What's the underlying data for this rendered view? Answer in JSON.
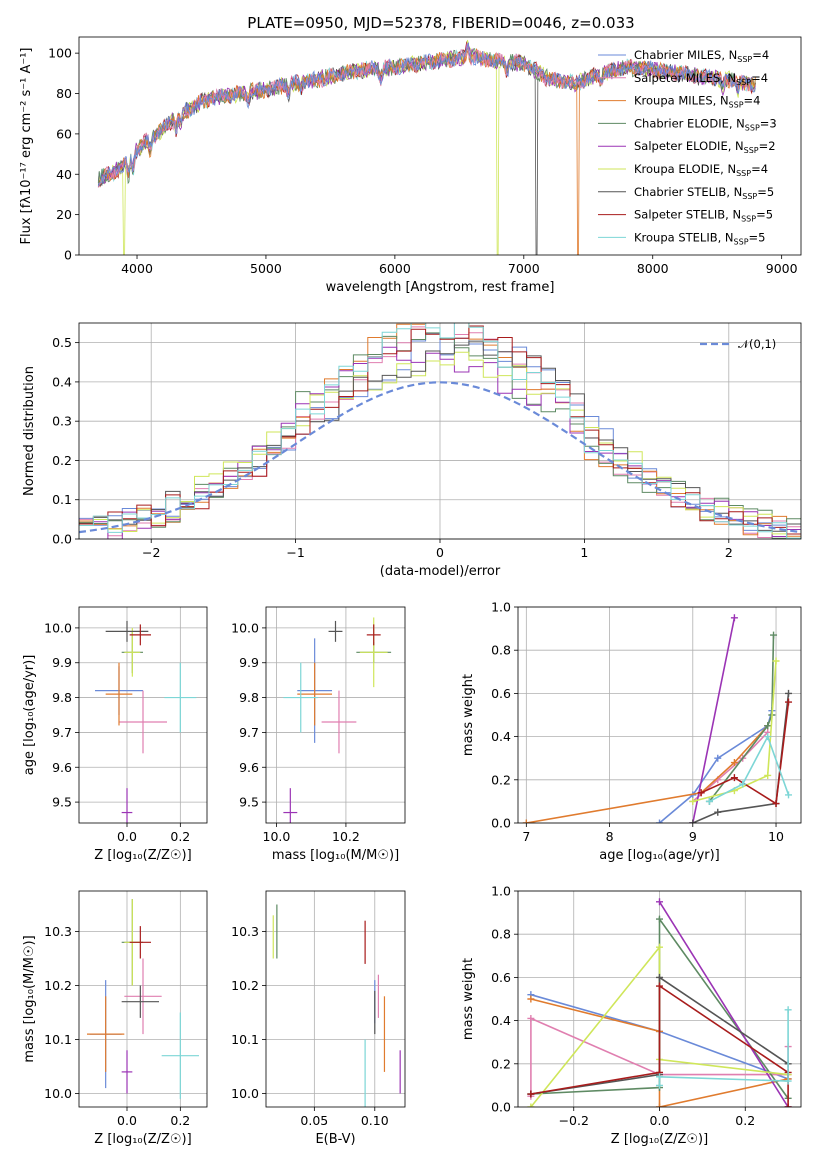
{
  "figure": {
    "title": "PLATE=0950, MJD=52378, FIBERID=0046, z=0.033"
  },
  "series": [
    {
      "name": "Chabrier MILES, N",
      "sub": "SSP",
      "n": "=4",
      "color": "#6a8ad8"
    },
    {
      "name": "Salpeter MILES, N",
      "sub": "SSP",
      "n": "=4",
      "color": "#e07fb0"
    },
    {
      "name": "Kroupa MILES, N",
      "sub": "SSP",
      "n": "=4",
      "color": "#e07b2e"
    },
    {
      "name": "Chabrier ELODIE, N",
      "sub": "SSP",
      "n": "=3",
      "color": "#5e8a63"
    },
    {
      "name": "Salpeter ELODIE, N",
      "sub": "SSP",
      "n": "=2",
      "color": "#9b34b5"
    },
    {
      "name": "Kroupa ELODIE, N",
      "sub": "SSP",
      "n": "=4",
      "color": "#cfe65a"
    },
    {
      "name": "Chabrier STELIB, N",
      "sub": "SSP",
      "n": "=5",
      "color": "#555555"
    },
    {
      "name": "Salpeter STELIB, N",
      "sub": "SSP",
      "n": "=5",
      "color": "#a81c1c"
    },
    {
      "name": "Kroupa STELIB, N",
      "sub": "SSP",
      "n": "=5",
      "color": "#7dd6d6"
    }
  ],
  "chart_data": [
    {
      "id": "spectrum",
      "type": "line",
      "xlabel": "wavelength [Angstrom, rest frame]",
      "ylabel": "Flux [fλ10⁻¹⁷ erg cm⁻² s⁻¹ A⁻¹]",
      "xlim": [
        3550,
        9150
      ],
      "ylim": [
        0,
        108
      ],
      "xticks": [
        4000,
        5000,
        6000,
        7000,
        8000,
        9000
      ],
      "yticks": [
        0,
        20,
        40,
        60,
        80,
        100
      ],
      "grid": false,
      "legend": "top-right",
      "continuum": {
        "x": [
          3700,
          3800,
          3900,
          4000,
          4100,
          4200,
          4300,
          4400,
          4500,
          4600,
          4800,
          5000,
          5200,
          5400,
          5600,
          5800,
          6000,
          6200,
          6400,
          6600,
          6800,
          7000,
          7200,
          7400,
          7600,
          7800,
          8000,
          8200,
          8400,
          8600,
          8800
        ],
        "y": [
          38,
          40,
          45,
          52,
          58,
          62,
          68,
          72,
          76,
          78,
          80,
          82,
          85,
          87,
          90,
          92,
          93,
          95,
          97,
          98,
          96,
          95,
          87,
          85,
          90,
          93,
          92,
          90,
          88,
          87,
          84
        ]
      },
      "dropouts": [
        {
          "series": 5,
          "x": 3900
        },
        {
          "series": 5,
          "x": 6800
        },
        {
          "series": 6,
          "x": 7100
        },
        {
          "series": 2,
          "x": 7420
        }
      ]
    },
    {
      "id": "residuals",
      "type": "step",
      "xlabel": "(data-model)/error",
      "ylabel": "Normed distribution",
      "xlim": [
        -2.5,
        2.5
      ],
      "ylim": [
        0,
        0.55
      ],
      "xticks": [
        -2,
        -1,
        0,
        1,
        2
      ],
      "yticks": [
        0.0,
        0.1,
        0.2,
        0.3,
        0.4,
        0.5
      ],
      "grid": true,
      "legend": "top-right",
      "reference": {
        "name": "𝒩(0,1)",
        "mean": 0,
        "sigma": 1,
        "color": "#6a8ad8"
      },
      "bin_width": 0.1
    },
    {
      "id": "age-vs-Z",
      "type": "errorbar",
      "xlabel": "Z [log₁₀(Z/Z☉)]",
      "ylabel": "age  [log₁₀(age/yr)]",
      "xlim": [
        -0.18,
        0.3
      ],
      "ylim": [
        9.44,
        10.06
      ],
      "xticks": [
        0.0,
        0.2
      ],
      "yticks": [
        9.5,
        9.6,
        9.7,
        9.8,
        9.9,
        10.0
      ],
      "grid": true,
      "points": [
        {
          "series": 0,
          "x": -0.03,
          "y": 9.82,
          "xerr": 0.09,
          "yerr": 0.07
        },
        {
          "series": 1,
          "x": 0.06,
          "y": 9.73,
          "xerr": 0.09,
          "yerr": 0.09
        },
        {
          "series": 2,
          "x": -0.03,
          "y": 9.81,
          "xerr": 0.05,
          "yerr": 0.09
        },
        {
          "series": 3,
          "x": 0.02,
          "y": 9.93,
          "xerr": 0.04,
          "yerr": 0.06
        },
        {
          "series": 4,
          "x": 0.0,
          "y": 9.47,
          "xerr": 0.02,
          "yerr": 0.07
        },
        {
          "series": 5,
          "x": 0.02,
          "y": 9.93,
          "xerr": 0.03,
          "yerr": 0.07
        },
        {
          "series": 6,
          "x": 0.0,
          "y": 9.99,
          "xerr": 0.08,
          "yerr": 0.03
        },
        {
          "series": 7,
          "x": 0.05,
          "y": 9.98,
          "xerr": 0.04,
          "yerr": 0.03
        },
        {
          "series": 8,
          "x": 0.2,
          "y": 9.8,
          "xerr": 0.06,
          "yerr": 0.1
        }
      ]
    },
    {
      "id": "age-vs-mass",
      "type": "errorbar",
      "xlabel": "mass [log₁₀(M/M☉)]",
      "ylabel": "",
      "xlim": [
        9.97,
        10.37
      ],
      "ylim": [
        9.44,
        10.06
      ],
      "xticks": [
        10.0,
        10.2
      ],
      "yticks": [
        9.5,
        9.6,
        9.7,
        9.8,
        9.9,
        10.0
      ],
      "grid": true,
      "points": [
        {
          "series": 0,
          "x": 10.11,
          "y": 9.82,
          "xerr": 0.05,
          "yerr": 0.15
        },
        {
          "series": 1,
          "x": 10.18,
          "y": 9.73,
          "xerr": 0.05,
          "yerr": 0.09
        },
        {
          "series": 2,
          "x": 10.11,
          "y": 9.81,
          "xerr": 0.05,
          "yerr": 0.09
        },
        {
          "series": 3,
          "x": 10.28,
          "y": 9.93,
          "xerr": 0.05,
          "yerr": 0.03
        },
        {
          "series": 4,
          "x": 10.04,
          "y": 9.47,
          "xerr": 0.02,
          "yerr": 0.07
        },
        {
          "series": 5,
          "x": 10.28,
          "y": 9.93,
          "xerr": 0.04,
          "yerr": 0.1
        },
        {
          "series": 6,
          "x": 10.17,
          "y": 9.99,
          "xerr": 0.02,
          "yerr": 0.03
        },
        {
          "series": 7,
          "x": 10.28,
          "y": 9.98,
          "xerr": 0.02,
          "yerr": 0.03
        },
        {
          "series": 8,
          "x": 10.07,
          "y": 9.8,
          "xerr": 0.05,
          "yerr": 0.1
        }
      ]
    },
    {
      "id": "weight-vs-age",
      "type": "line",
      "xlabel": "age  [log₁₀(age/yr)]",
      "ylabel": "mass weight",
      "xlim": [
        6.9,
        10.3
      ],
      "ylim": [
        0,
        1.0
      ],
      "xticks": [
        7,
        8,
        9,
        10
      ],
      "yticks": [
        0.0,
        0.2,
        0.4,
        0.6,
        0.8,
        1.0
      ],
      "grid": true,
      "lines": [
        {
          "series": 0,
          "x": [
            8.6,
            9.0,
            9.3,
            9.9,
            9.95
          ],
          "y": [
            0.0,
            0.13,
            0.3,
            0.45,
            0.52
          ]
        },
        {
          "series": 1,
          "x": [
            9.0,
            9.3,
            9.6,
            9.9
          ],
          "y": [
            0.1,
            0.2,
            0.3,
            0.42
          ]
        },
        {
          "series": 2,
          "x": [
            7.0,
            9.1,
            9.5,
            9.9
          ],
          "y": [
            0.0,
            0.14,
            0.28,
            0.45
          ]
        },
        {
          "series": 3,
          "x": [
            9.2,
            9.9,
            9.95,
            9.97
          ],
          "y": [
            0.1,
            0.45,
            0.5,
            0.87
          ]
        },
        {
          "series": 4,
          "x": [
            9.0,
            9.5
          ],
          "y": [
            0.0,
            0.95
          ]
        },
        {
          "series": 5,
          "x": [
            9.0,
            9.5,
            9.9,
            10.0
          ],
          "y": [
            0.1,
            0.15,
            0.22,
            0.75
          ]
        },
        {
          "series": 6,
          "x": [
            9.0,
            9.3,
            10.0,
            10.15
          ],
          "y": [
            0.0,
            0.05,
            0.09,
            0.6
          ]
        },
        {
          "series": 7,
          "x": [
            9.1,
            9.5,
            10.0,
            10.15
          ],
          "y": [
            0.14,
            0.21,
            0.09,
            0.56
          ]
        },
        {
          "series": 8,
          "x": [
            9.2,
            9.6,
            9.9,
            10.15
          ],
          "y": [
            0.1,
            0.18,
            0.4,
            0.13
          ]
        }
      ]
    },
    {
      "id": "mass-vs-Z",
      "type": "errorbar",
      "xlabel": "Z [log₁₀(Z/Z☉)]",
      "ylabel": "mass [log₁₀(M/M☉)]",
      "xlim": [
        -0.18,
        0.3
      ],
      "ylim": [
        9.975,
        10.375
      ],
      "xticks": [
        0.0,
        0.2
      ],
      "yticks": [
        10.0,
        10.1,
        10.2,
        10.3
      ],
      "grid": true,
      "points": [
        {
          "series": 0,
          "x": -0.08,
          "y": 10.11,
          "xerr": 0.06,
          "yerr": 0.1
        },
        {
          "series": 1,
          "x": 0.06,
          "y": 10.18,
          "xerr": 0.07,
          "yerr": 0.07
        },
        {
          "series": 2,
          "x": -0.08,
          "y": 10.11,
          "xerr": 0.07,
          "yerr": 0.07
        },
        {
          "series": 3,
          "x": 0.02,
          "y": 10.28,
          "xerr": 0.04,
          "yerr": 0.08
        },
        {
          "series": 4,
          "x": 0.0,
          "y": 10.04,
          "xerr": 0.02,
          "yerr": 0.04
        },
        {
          "series": 5,
          "x": 0.02,
          "y": 10.28,
          "xerr": 0.03,
          "yerr": 0.08
        },
        {
          "series": 6,
          "x": 0.05,
          "y": 10.17,
          "xerr": 0.07,
          "yerr": 0.03
        },
        {
          "series": 7,
          "x": 0.05,
          "y": 10.28,
          "xerr": 0.04,
          "yerr": 0.03
        },
        {
          "series": 8,
          "x": 0.2,
          "y": 10.07,
          "xerr": 0.07,
          "yerr": 0.08
        }
      ]
    },
    {
      "id": "mass-vs-ebv",
      "type": "errorbar",
      "xlabel": "E(B-V)",
      "ylabel": "",
      "xlim": [
        0.01,
        0.125
      ],
      "ylim": [
        9.975,
        10.375
      ],
      "xticks": [
        0.05,
        0.1
      ],
      "yticks": [
        10.0,
        10.1,
        10.2,
        10.3
      ],
      "grid": true,
      "points": [
        {
          "series": 0,
          "x": 0.1,
          "y": 10.17,
          "xerr": 0.0,
          "yerr": 0.04
        },
        {
          "series": 1,
          "x": 0.103,
          "y": 10.18,
          "xerr": 0.0,
          "yerr": 0.04
        },
        {
          "series": 2,
          "x": 0.108,
          "y": 10.11,
          "xerr": 0.0,
          "yerr": 0.07
        },
        {
          "series": 3,
          "x": 0.019,
          "y": 10.3,
          "xerr": 0.0,
          "yerr": 0.05
        },
        {
          "series": 4,
          "x": 0.121,
          "y": 10.04,
          "xerr": 0.0,
          "yerr": 0.04
        },
        {
          "series": 5,
          "x": 0.016,
          "y": 10.29,
          "xerr": 0.0,
          "yerr": 0.04
        },
        {
          "series": 6,
          "x": 0.1,
          "y": 10.15,
          "xerr": 0.0,
          "yerr": 0.04
        },
        {
          "series": 7,
          "x": 0.092,
          "y": 10.28,
          "xerr": 0.0,
          "yerr": 0.04
        },
        {
          "series": 8,
          "x": 0.092,
          "y": 10.03,
          "xerr": 0.0,
          "yerr": 0.07
        }
      ]
    },
    {
      "id": "weight-vs-Z",
      "type": "line",
      "xlabel": "Z [log₁₀(Z/Z☉)]",
      "ylabel": "mass weight",
      "xlim": [
        -0.33,
        0.33
      ],
      "ylim": [
        0,
        1.0
      ],
      "xticks": [
        -0.2,
        0.0,
        0.2
      ],
      "yticks": [
        0.0,
        0.2,
        0.4,
        0.6,
        0.8,
        1.0
      ],
      "grid": true,
      "lines": [
        {
          "series": 0,
          "x": [
            -0.3,
            0.0,
            0.3
          ],
          "y": [
            0.52,
            0.35,
            0.13
          ]
        },
        {
          "series": 1,
          "x": [
            -0.3,
            -0.3,
            0.0,
            0.3,
            0.3
          ],
          "y": [
            0.05,
            0.41,
            0.15,
            0.15,
            0.28
          ]
        },
        {
          "series": 2,
          "x": [
            -0.3,
            0.0,
            0.0,
            0.3
          ],
          "y": [
            0.5,
            0.35,
            0.0,
            0.13
          ]
        },
        {
          "series": 3,
          "x": [
            -0.3,
            0.0,
            0.0,
            0.3
          ],
          "y": [
            0.06,
            0.09,
            0.87,
            0.04
          ]
        },
        {
          "series": 4,
          "x": [
            0.0,
            0.3
          ],
          "y": [
            0.95,
            0.0
          ]
        },
        {
          "series": 5,
          "x": [
            -0.3,
            0.0,
            0.0,
            0.3
          ],
          "y": [
            0.0,
            0.74,
            0.22,
            0.15
          ]
        },
        {
          "series": 6,
          "x": [
            -0.3,
            0.0,
            0.0,
            0.3
          ],
          "y": [
            0.06,
            0.15,
            0.6,
            0.2
          ]
        },
        {
          "series": 7,
          "x": [
            -0.3,
            0.0,
            0.0,
            0.3,
            0.3
          ],
          "y": [
            0.06,
            0.16,
            0.56,
            0.16,
            0.0
          ]
        },
        {
          "series": 8,
          "x": [
            0.0,
            0.0,
            0.3,
            0.3
          ],
          "y": [
            0.1,
            0.14,
            0.12,
            0.45
          ]
        }
      ]
    }
  ]
}
